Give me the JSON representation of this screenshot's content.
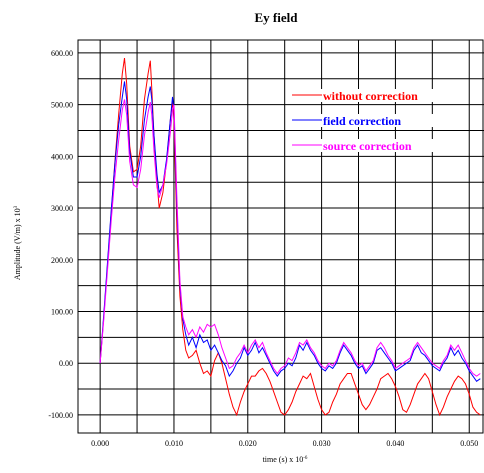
{
  "chart_data": {
    "type": "line",
    "title": "Ey field",
    "ylabel": "Amplitude (V/m) x 10",
    "ylabel_exponent": "3",
    "xlabel": "time (s) x 10",
    "xlabel_exponent": "-6",
    "xlim": [
      -0.003,
      0.052
    ],
    "ylim": [
      -135,
      625
    ],
    "x_ticks": [
      "0.000",
      "0.010",
      "0.020",
      "0.030",
      "0.040",
      "0.050"
    ],
    "y_ticks": [
      "-100.00",
      "0.00",
      "100.00",
      "200.00",
      "300.00",
      "400.00",
      "500.00",
      "600.00"
    ],
    "grid": true,
    "legend_position": "top-right",
    "series": [
      {
        "name": "without correction",
        "color": "#ff0000",
        "x": [
          0.0,
          0.0005,
          0.001,
          0.0015,
          0.002,
          0.0025,
          0.003,
          0.0033,
          0.0036,
          0.004,
          0.0045,
          0.005,
          0.0055,
          0.006,
          0.0065,
          0.0068,
          0.007,
          0.0073,
          0.0077,
          0.008,
          0.0085,
          0.009,
          0.0095,
          0.0098,
          0.01,
          0.0104,
          0.0108,
          0.0112,
          0.0116,
          0.012,
          0.0125,
          0.013,
          0.0135,
          0.014,
          0.0145,
          0.015,
          0.0155,
          0.016,
          0.0165,
          0.017,
          0.0175,
          0.018,
          0.0185,
          0.019,
          0.0195,
          0.02,
          0.0205,
          0.021,
          0.0215,
          0.022,
          0.0225,
          0.023,
          0.0235,
          0.024,
          0.0245,
          0.025,
          0.0255,
          0.026,
          0.0265,
          0.027,
          0.0275,
          0.028,
          0.0285,
          0.029,
          0.0295,
          0.03,
          0.0305,
          0.031,
          0.0315,
          0.032,
          0.0325,
          0.033,
          0.0335,
          0.034,
          0.0345,
          0.035,
          0.0355,
          0.036,
          0.0365,
          0.037,
          0.0375,
          0.038,
          0.0385,
          0.039,
          0.0395,
          0.04,
          0.0405,
          0.041,
          0.0415,
          0.042,
          0.0425,
          0.043,
          0.0435,
          0.044,
          0.0445,
          0.045,
          0.0455,
          0.046,
          0.0465,
          0.047,
          0.0475,
          0.048,
          0.0485,
          0.049,
          0.0495,
          0.05,
          0.0505,
          0.051,
          0.0515
        ],
        "values": [
          0,
          90,
          190,
          290,
          390,
          480,
          560,
          590,
          540,
          420,
          370,
          375,
          420,
          510,
          560,
          585,
          530,
          440,
          350,
          300,
          330,
          390,
          470,
          505,
          470,
          260,
          130,
          65,
          25,
          10,
          15,
          25,
          0,
          -20,
          -15,
          -25,
          5,
          20,
          0,
          -30,
          -60,
          -85,
          -100,
          -75,
          -55,
          -40,
          -25,
          -25,
          -15,
          -10,
          -20,
          -35,
          -55,
          -75,
          -95,
          -100,
          -90,
          -75,
          -55,
          -40,
          -25,
          -30,
          -20,
          -45,
          -70,
          -90,
          -100,
          -95,
          -75,
          -60,
          -40,
          -30,
          -20,
          -20,
          -40,
          -60,
          -80,
          -90,
          -80,
          -65,
          -50,
          -30,
          -25,
          -20,
          -30,
          -45,
          -65,
          -90,
          -95,
          -80,
          -60,
          -40,
          -30,
          -20,
          -30,
          -55,
          -80,
          -100,
          -85,
          -65,
          -50,
          -35,
          -25,
          -30,
          -40,
          -60,
          -85,
          -95,
          -100
        ]
      },
      {
        "name": "field correction",
        "color": "#0000ff",
        "x": [
          0.0,
          0.0005,
          0.001,
          0.0015,
          0.002,
          0.0025,
          0.003,
          0.0033,
          0.0036,
          0.004,
          0.0045,
          0.005,
          0.0055,
          0.006,
          0.0065,
          0.0068,
          0.007,
          0.0073,
          0.0077,
          0.008,
          0.0085,
          0.009,
          0.0095,
          0.0098,
          0.01,
          0.0104,
          0.0108,
          0.0112,
          0.0116,
          0.012,
          0.0125,
          0.013,
          0.0135,
          0.014,
          0.0145,
          0.015,
          0.0155,
          0.016,
          0.0165,
          0.017,
          0.0175,
          0.018,
          0.0185,
          0.019,
          0.0195,
          0.02,
          0.0205,
          0.021,
          0.0215,
          0.022,
          0.0225,
          0.023,
          0.0235,
          0.024,
          0.0245,
          0.025,
          0.0255,
          0.026,
          0.0265,
          0.027,
          0.0275,
          0.028,
          0.0285,
          0.029,
          0.0295,
          0.03,
          0.0305,
          0.031,
          0.0315,
          0.032,
          0.0325,
          0.033,
          0.0335,
          0.034,
          0.0345,
          0.035,
          0.0355,
          0.036,
          0.0365,
          0.037,
          0.0375,
          0.038,
          0.0385,
          0.039,
          0.0395,
          0.04,
          0.0405,
          0.041,
          0.0415,
          0.042,
          0.0425,
          0.043,
          0.0435,
          0.044,
          0.0445,
          0.045,
          0.0455,
          0.046,
          0.0465,
          0.047,
          0.0475,
          0.048,
          0.0485,
          0.049,
          0.0495,
          0.05,
          0.0505,
          0.051,
          0.0515
        ],
        "values": [
          0,
          95,
          195,
          295,
          385,
          460,
          515,
          545,
          510,
          410,
          360,
          360,
          400,
          470,
          515,
          535,
          510,
          440,
          365,
          330,
          345,
          395,
          470,
          515,
          490,
          300,
          150,
          85,
          55,
          35,
          50,
          30,
          55,
          40,
          45,
          25,
          35,
          20,
          5,
          -5,
          -25,
          -15,
          0,
          10,
          30,
          15,
          25,
          40,
          20,
          30,
          15,
          0,
          -15,
          -25,
          -15,
          -10,
          0,
          -5,
          10,
          35,
          25,
          40,
          25,
          15,
          0,
          -10,
          -15,
          -5,
          -10,
          0,
          20,
          35,
          25,
          15,
          0,
          -10,
          -5,
          -20,
          -10,
          0,
          25,
          30,
          20,
          10,
          0,
          -15,
          -10,
          -5,
          0,
          5,
          25,
          35,
          20,
          15,
          5,
          -5,
          -10,
          -15,
          0,
          10,
          30,
          15,
          25,
          10,
          0,
          -15,
          -25,
          -35,
          -30
        ]
      },
      {
        "name": "source correction",
        "color": "#ff00ff",
        "x": [
          0.0,
          0.0005,
          0.001,
          0.0015,
          0.002,
          0.0025,
          0.003,
          0.0033,
          0.0036,
          0.004,
          0.0045,
          0.005,
          0.0055,
          0.006,
          0.0065,
          0.0068,
          0.007,
          0.0073,
          0.0077,
          0.008,
          0.0085,
          0.009,
          0.0095,
          0.0098,
          0.01,
          0.0104,
          0.0108,
          0.0112,
          0.0116,
          0.012,
          0.0125,
          0.013,
          0.0135,
          0.014,
          0.0145,
          0.015,
          0.0155,
          0.016,
          0.0165,
          0.017,
          0.0175,
          0.018,
          0.0185,
          0.019,
          0.0195,
          0.02,
          0.0205,
          0.021,
          0.0215,
          0.022,
          0.0225,
          0.023,
          0.0235,
          0.024,
          0.0245,
          0.025,
          0.0255,
          0.026,
          0.0265,
          0.027,
          0.0275,
          0.028,
          0.0285,
          0.029,
          0.0295,
          0.03,
          0.0305,
          0.031,
          0.0315,
          0.032,
          0.0325,
          0.033,
          0.0335,
          0.034,
          0.0345,
          0.035,
          0.0355,
          0.036,
          0.0365,
          0.037,
          0.0375,
          0.038,
          0.0385,
          0.039,
          0.0395,
          0.04,
          0.0405,
          0.041,
          0.0415,
          0.042,
          0.0425,
          0.043,
          0.0435,
          0.044,
          0.0445,
          0.045,
          0.0455,
          0.046,
          0.0465,
          0.047,
          0.0475,
          0.048,
          0.0485,
          0.049,
          0.0495,
          0.05,
          0.0505,
          0.051,
          0.0515
        ],
        "values": [
          0,
          85,
          180,
          275,
          360,
          430,
          490,
          510,
          480,
          390,
          345,
          340,
          375,
          440,
          485,
          505,
          480,
          410,
          340,
          320,
          345,
          385,
          445,
          490,
          500,
          320,
          160,
          90,
          70,
          55,
          65,
          50,
          70,
          60,
          75,
          70,
          75,
          55,
          30,
          10,
          -10,
          -5,
          10,
          20,
          35,
          20,
          35,
          45,
          30,
          40,
          20,
          5,
          -10,
          -20,
          -10,
          -5,
          10,
          5,
          20,
          40,
          35,
          45,
          30,
          20,
          5,
          -5,
          -10,
          0,
          -5,
          5,
          25,
          40,
          30,
          20,
          5,
          -5,
          0,
          -15,
          -5,
          5,
          30,
          40,
          30,
          15,
          5,
          -10,
          -5,
          0,
          5,
          10,
          30,
          40,
          30,
          20,
          10,
          0,
          -5,
          -10,
          5,
          15,
          35,
          25,
          35,
          20,
          5,
          -10,
          -20,
          -25,
          -20
        ]
      }
    ]
  }
}
